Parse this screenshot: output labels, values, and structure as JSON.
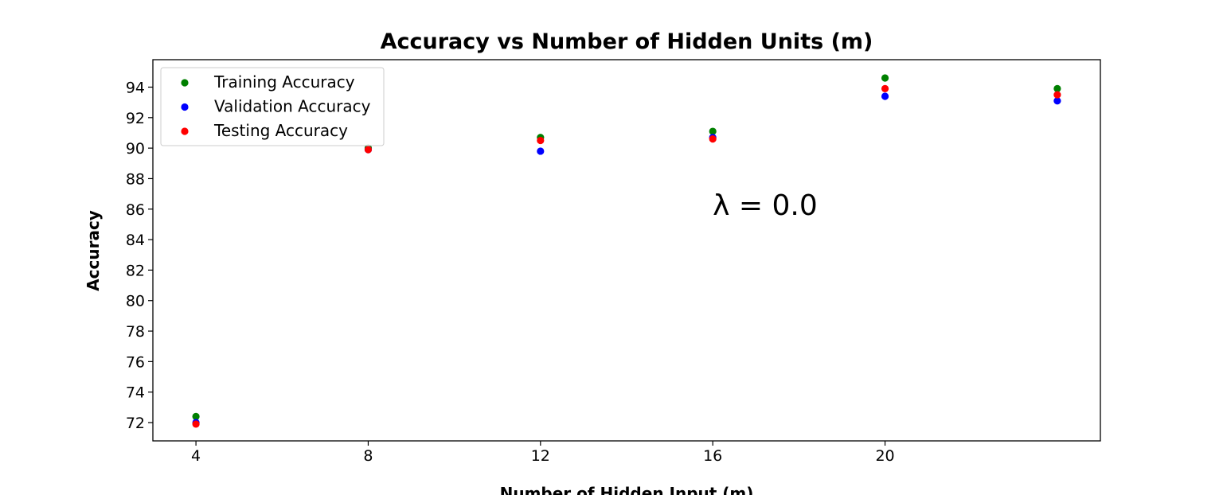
{
  "chart_data": {
    "type": "scatter",
    "title": "Accuracy vs Number of Hidden Units (m)",
    "xlabel": "Number of Hidden Input (m)",
    "ylabel": "Accuracy",
    "xlim": [
      3,
      25
    ],
    "ylim": [
      70.8,
      95.8
    ],
    "x_ticks": [
      4,
      8,
      12,
      16,
      20
    ],
    "y_ticks": [
      72,
      74,
      76,
      78,
      80,
      82,
      84,
      86,
      88,
      90,
      92,
      94
    ],
    "x": [
      4,
      8,
      12,
      16,
      20,
      24
    ],
    "series": [
      {
        "name": "Training Accuracy",
        "color": "#008000",
        "values": [
          72.4,
          90.0,
          90.7,
          91.1,
          94.6,
          93.9
        ]
      },
      {
        "name": "Validation Accuracy",
        "color": "#0000ff",
        "values": [
          72.0,
          89.9,
          89.8,
          90.7,
          93.4,
          93.1
        ]
      },
      {
        "name": "Testing Accuracy",
        "color": "#ff0000",
        "values": [
          71.9,
          89.9,
          90.5,
          90.6,
          93.9,
          93.5
        ]
      }
    ],
    "annotation": {
      "text": "λ = 0.0",
      "x": 16,
      "y": 86.3
    },
    "legend_position": "upper-left",
    "grid": false
  }
}
